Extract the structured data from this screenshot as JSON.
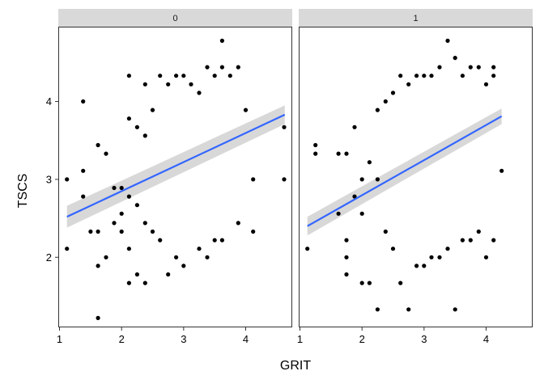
{
  "chart_data": {
    "type": "scatter",
    "xlabel": "GRIT",
    "ylabel": "TSCS",
    "x_ticks": [
      1,
      2,
      3,
      4
    ],
    "y_ticks": [
      2,
      3,
      4
    ],
    "x_range": [
      0.98,
      4.75
    ],
    "y_range": [
      1.1,
      4.95
    ],
    "grid": false,
    "point_color": "#000000",
    "fit_line_color": "#3366ff",
    "ci_band_color": "#bebebe",
    "strip_color": "#d9d9d9",
    "panels": [
      {
        "strip_label": "0",
        "fit": {
          "x": [
            1.12,
            4.63
          ],
          "y": [
            2.52,
            3.83
          ],
          "ci_halfwidth": [
            0.14,
            0.12
          ]
        },
        "points": [
          [
            1.12,
            3.0
          ],
          [
            1.12,
            2.11
          ],
          [
            1.38,
            4.0
          ],
          [
            1.38,
            3.11
          ],
          [
            1.38,
            2.78
          ],
          [
            1.5,
            2.33
          ],
          [
            1.62,
            3.44
          ],
          [
            1.62,
            2.33
          ],
          [
            1.62,
            1.89
          ],
          [
            1.62,
            1.22
          ],
          [
            1.75,
            3.33
          ],
          [
            1.75,
            2.0
          ],
          [
            1.88,
            2.89
          ],
          [
            1.88,
            2.44
          ],
          [
            2.0,
            2.89
          ],
          [
            2.0,
            2.56
          ],
          [
            2.0,
            2.33
          ],
          [
            2.12,
            4.33
          ],
          [
            2.12,
            3.78
          ],
          [
            2.12,
            2.78
          ],
          [
            2.12,
            2.11
          ],
          [
            2.12,
            1.67
          ],
          [
            2.25,
            3.67
          ],
          [
            2.25,
            2.67
          ],
          [
            2.25,
            1.78
          ],
          [
            2.38,
            4.22
          ],
          [
            2.38,
            3.56
          ],
          [
            2.38,
            2.44
          ],
          [
            2.38,
            1.67
          ],
          [
            2.5,
            3.89
          ],
          [
            2.5,
            2.33
          ],
          [
            2.62,
            4.33
          ],
          [
            2.62,
            2.22
          ],
          [
            2.75,
            4.22
          ],
          [
            2.75,
            1.78
          ],
          [
            2.88,
            4.33
          ],
          [
            2.88,
            2.0
          ],
          [
            3.0,
            4.33
          ],
          [
            3.0,
            1.89
          ],
          [
            3.12,
            4.22
          ],
          [
            3.25,
            4.11
          ],
          [
            3.25,
            2.11
          ],
          [
            3.38,
            4.44
          ],
          [
            3.38,
            2.0
          ],
          [
            3.5,
            4.33
          ],
          [
            3.5,
            2.22
          ],
          [
            3.62,
            4.78
          ],
          [
            3.62,
            4.44
          ],
          [
            3.62,
            2.22
          ],
          [
            3.75,
            4.33
          ],
          [
            3.88,
            4.44
          ],
          [
            3.88,
            2.44
          ],
          [
            4.0,
            3.89
          ],
          [
            4.12,
            3.0
          ],
          [
            4.12,
            2.33
          ],
          [
            4.62,
            3.67
          ],
          [
            4.62,
            3.0
          ]
        ]
      },
      {
        "strip_label": "1",
        "fit": {
          "x": [
            1.12,
            4.25
          ],
          "y": [
            2.4,
            3.81
          ],
          "ci_halfwidth": [
            0.12,
            0.1
          ]
        },
        "points": [
          [
            1.12,
            2.11
          ],
          [
            1.25,
            3.44
          ],
          [
            1.25,
            3.33
          ],
          [
            1.62,
            3.33
          ],
          [
            1.62,
            2.56
          ],
          [
            1.75,
            3.33
          ],
          [
            1.75,
            2.22
          ],
          [
            1.75,
            2.0
          ],
          [
            1.75,
            1.78
          ],
          [
            1.88,
            3.67
          ],
          [
            1.88,
            2.78
          ],
          [
            2.0,
            3.0
          ],
          [
            2.0,
            2.56
          ],
          [
            2.0,
            1.67
          ],
          [
            2.12,
            3.22
          ],
          [
            2.12,
            1.67
          ],
          [
            2.25,
            3.89
          ],
          [
            2.25,
            3.0
          ],
          [
            2.25,
            1.33
          ],
          [
            2.38,
            4.0
          ],
          [
            2.38,
            2.33
          ],
          [
            2.5,
            4.11
          ],
          [
            2.5,
            2.11
          ],
          [
            2.62,
            4.33
          ],
          [
            2.62,
            1.67
          ],
          [
            2.75,
            4.22
          ],
          [
            2.75,
            1.33
          ],
          [
            2.88,
            4.33
          ],
          [
            2.88,
            1.89
          ],
          [
            3.0,
            4.33
          ],
          [
            3.0,
            1.89
          ],
          [
            3.12,
            4.33
          ],
          [
            3.12,
            2.0
          ],
          [
            3.25,
            4.44
          ],
          [
            3.25,
            2.0
          ],
          [
            3.38,
            4.78
          ],
          [
            3.38,
            2.11
          ],
          [
            3.5,
            4.56
          ],
          [
            3.5,
            1.33
          ],
          [
            3.62,
            4.33
          ],
          [
            3.62,
            2.22
          ],
          [
            3.75,
            4.44
          ],
          [
            3.75,
            2.22
          ],
          [
            3.88,
            4.44
          ],
          [
            3.88,
            2.33
          ],
          [
            4.0,
            4.22
          ],
          [
            4.0,
            2.0
          ],
          [
            4.12,
            4.44
          ],
          [
            4.12,
            4.33
          ],
          [
            4.12,
            2.22
          ],
          [
            4.25,
            3.11
          ]
        ]
      }
    ]
  }
}
